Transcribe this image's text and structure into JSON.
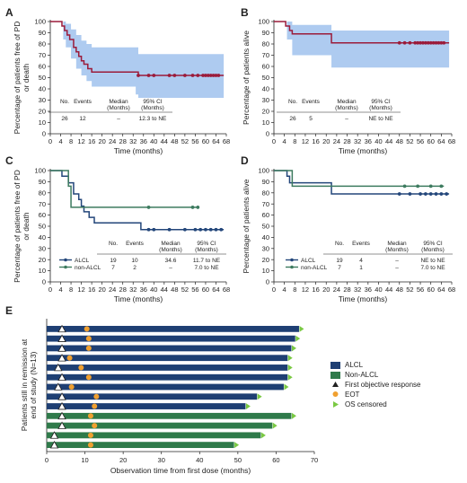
{
  "figure": {
    "panel_labels": [
      "A",
      "B",
      "C",
      "D",
      "E"
    ]
  },
  "colors": {
    "red": "#9b1b3a",
    "band": "#aecbf0",
    "navy": "#23467a",
    "green": "#3d7b5f",
    "alcl_bar": "#1e3f73",
    "nonalcl_bar": "#2f7a4a",
    "orange": "#f0a030",
    "ltgreen": "#7ac943",
    "tri": "#222222"
  },
  "chart_data": [
    {
      "id": "A",
      "type": "line",
      "ylabel": "Percentage of patients free of PD or death",
      "xlabel": "Time (months)",
      "xlim": [
        0,
        68
      ],
      "ylim": [
        0,
        100
      ],
      "xticks": [
        0,
        4,
        8,
        12,
        16,
        20,
        24,
        28,
        32,
        36,
        40,
        44,
        48,
        52,
        56,
        60,
        64,
        68
      ],
      "yticks": [
        0,
        10,
        20,
        30,
        40,
        50,
        60,
        70,
        80,
        90,
        100
      ],
      "table": {
        "header": [
          "No.",
          "Events",
          "Median (Months)",
          "95% CI (Months)"
        ],
        "rows": [
          [
            "",
            "26",
            "12",
            "–",
            "12.3 to NE"
          ]
        ]
      },
      "series": [
        {
          "color_key": "red",
          "steps": [
            [
              0,
              100
            ],
            [
              4,
              100
            ],
            [
              4.5,
              96
            ],
            [
              5.5,
              92
            ],
            [
              6.5,
              88
            ],
            [
              7.5,
              84
            ],
            [
              9,
              77
            ],
            [
              10,
              73
            ],
            [
              11,
              69
            ],
            [
              12,
              65
            ],
            [
              13,
              62
            ],
            [
              14.5,
              58
            ],
            [
              16,
              55
            ],
            [
              33,
              55
            ],
            [
              34,
              52
            ],
            [
              67,
              52
            ]
          ],
          "censored": [
            34,
            38,
            40,
            46,
            48,
            52,
            55,
            57,
            59,
            60,
            61,
            62,
            63,
            64,
            65
          ],
          "ci_upper": [
            [
              0,
              100
            ],
            [
              4,
              100
            ],
            [
              5,
              100
            ],
            [
              6,
              98
            ],
            [
              8,
              93
            ],
            [
              10,
              88
            ],
            [
              12,
              83
            ],
            [
              14,
              80
            ],
            [
              16,
              77
            ],
            [
              34,
              71
            ],
            [
              67,
              71
            ]
          ],
          "ci_lower": [
            [
              0,
              100
            ],
            [
              4,
              100
            ],
            [
              5,
              84
            ],
            [
              6,
              77
            ],
            [
              8,
              67
            ],
            [
              10,
              58
            ],
            [
              12,
              52
            ],
            [
              14,
              47
            ],
            [
              16,
              42
            ],
            [
              33,
              35
            ],
            [
              34,
              32
            ],
            [
              67,
              32
            ]
          ]
        }
      ]
    },
    {
      "id": "B",
      "type": "line",
      "ylabel": "Percentage of patients alive",
      "xlabel": "Time (months)",
      "xlim": [
        0,
        68
      ],
      "ylim": [
        0,
        100
      ],
      "xticks": [
        0,
        4,
        8,
        12,
        16,
        20,
        24,
        28,
        32,
        36,
        40,
        44,
        48,
        52,
        56,
        60,
        64,
        68
      ],
      "yticks": [
        0,
        10,
        20,
        30,
        40,
        50,
        60,
        70,
        80,
        90,
        100
      ],
      "table": {
        "header": [
          "No.",
          "Events",
          "Median (Months)",
          "95% CI (Months)"
        ],
        "rows": [
          [
            "",
            "26",
            "5",
            "–",
            "NE to NE"
          ]
        ]
      },
      "series": [
        {
          "color_key": "red",
          "steps": [
            [
              0,
              100
            ],
            [
              4,
              100
            ],
            [
              4.5,
              96
            ],
            [
              6,
              92
            ],
            [
              7,
              89
            ],
            [
              21,
              89
            ],
            [
              22,
              81
            ],
            [
              67,
              81
            ]
          ],
          "censored": [
            48,
            50,
            52,
            54,
            55,
            56,
            57,
            58,
            59,
            60,
            61,
            62,
            63,
            64,
            65
          ],
          "ci_upper": [
            [
              0,
              100
            ],
            [
              4,
              100
            ],
            [
              5,
              100
            ],
            [
              7,
              97
            ],
            [
              21,
              97
            ],
            [
              22,
              92
            ],
            [
              67,
              92
            ]
          ],
          "ci_lower": [
            [
              0,
              100
            ],
            [
              4,
              100
            ],
            [
              5,
              84
            ],
            [
              7,
              70
            ],
            [
              21,
              70
            ],
            [
              22,
              59
            ],
            [
              67,
              59
            ]
          ]
        }
      ]
    },
    {
      "id": "C",
      "type": "line",
      "ylabel": "Percentage of patients free of PD or death",
      "xlabel": "Time (months)",
      "xlim": [
        0,
        68
      ],
      "ylim": [
        0,
        100
      ],
      "xticks": [
        0,
        4,
        8,
        12,
        16,
        20,
        24,
        28,
        32,
        36,
        40,
        44,
        48,
        52,
        56,
        60,
        64,
        68
      ],
      "yticks": [
        0,
        10,
        20,
        30,
        40,
        50,
        60,
        70,
        80,
        90,
        100
      ],
      "table": {
        "header": [
          "No.",
          "Events",
          "Median (Months)",
          "95% CI (Months)"
        ],
        "rows": [
          [
            "ALCL",
            "19",
            "10",
            "34.6",
            "11.7 to NE"
          ],
          [
            "non-ALCL",
            "7",
            "2",
            "–",
            "7.0 to NE"
          ]
        ]
      },
      "series": [
        {
          "name": "ALCL",
          "color_key": "navy",
          "steps": [
            [
              0,
              100
            ],
            [
              4,
              100
            ],
            [
              4.5,
              95
            ],
            [
              7,
              89
            ],
            [
              9,
              79
            ],
            [
              11,
              74
            ],
            [
              12,
              68
            ],
            [
              13,
              63
            ],
            [
              15,
              58
            ],
            [
              17,
              53
            ],
            [
              34,
              53
            ],
            [
              35,
              47
            ],
            [
              67,
              47
            ]
          ],
          "censored": [
            38,
            40,
            46,
            52,
            56,
            58,
            60,
            62,
            64,
            66
          ]
        },
        {
          "name": "non-ALCL",
          "color_key": "green",
          "steps": [
            [
              0,
              100
            ],
            [
              6,
              100
            ],
            [
              7,
              86
            ],
            [
              8,
              67
            ],
            [
              57,
              67
            ]
          ],
          "censored": [
            38,
            55,
            57
          ]
        }
      ]
    },
    {
      "id": "D",
      "type": "line",
      "ylabel": "Percentage of patients alive",
      "xlabel": "Time (months)",
      "xlim": [
        0,
        68
      ],
      "ylim": [
        0,
        100
      ],
      "xticks": [
        0,
        4,
        8,
        12,
        16,
        20,
        24,
        28,
        32,
        36,
        40,
        44,
        48,
        52,
        56,
        60,
        64,
        68
      ],
      "yticks": [
        0,
        10,
        20,
        30,
        40,
        50,
        60,
        70,
        80,
        90,
        100
      ],
      "table": {
        "header": [
          "No.",
          "Events",
          "Median (Months)",
          "95% CI (Months)"
        ],
        "rows": [
          [
            "ALCL",
            "19",
            "4",
            "–",
            "NE to NE"
          ],
          [
            "non-ALCL",
            "7",
            "1",
            "–",
            "7.0 to NE"
          ]
        ]
      },
      "series": [
        {
          "name": "ALCL",
          "color_key": "navy",
          "steps": [
            [
              0,
              100
            ],
            [
              4,
              100
            ],
            [
              5,
              95
            ],
            [
              6,
              89
            ],
            [
              21,
              89
            ],
            [
              22,
              79
            ],
            [
              67,
              79
            ]
          ],
          "censored": [
            48,
            52,
            56,
            58,
            60,
            62,
            64,
            66
          ]
        },
        {
          "name": "non-ALCL",
          "color_key": "green",
          "steps": [
            [
              0,
              100
            ],
            [
              6,
              100
            ],
            [
              7,
              86
            ],
            [
              65,
              86
            ]
          ],
          "censored": [
            50,
            55,
            60,
            64
          ]
        }
      ]
    },
    {
      "id": "E",
      "type": "bar",
      "orientation": "horizontal",
      "ylabel": "Patients still in remission at end of study (N=13)",
      "xlabel": "Observation time from first dose (months)",
      "xlim": [
        0,
        70
      ],
      "xticks": [
        0,
        10,
        20,
        30,
        40,
        50,
        60,
        70
      ],
      "legend": [
        "ALCL",
        "Non-ALCL",
        "First objective response",
        "EOT",
        "OS censored"
      ],
      "bars": [
        {
          "group": "ALCL",
          "end": 66,
          "response": 4,
          "eot": 10.5
        },
        {
          "group": "ALCL",
          "end": 65,
          "response": 4,
          "eot": 11
        },
        {
          "group": "ALCL",
          "end": 64,
          "response": 4,
          "eot": 11
        },
        {
          "group": "ALCL",
          "end": 63,
          "response": 4,
          "eot": 6
        },
        {
          "group": "ALCL",
          "end": 63,
          "response": 3,
          "eot": 9
        },
        {
          "group": "ALCL",
          "end": 63,
          "response": 4,
          "eot": 11
        },
        {
          "group": "ALCL",
          "end": 62,
          "response": 3,
          "eot": 6.5
        },
        {
          "group": "ALCL",
          "end": 55,
          "response": 4,
          "eot": 13
        },
        {
          "group": "ALCL",
          "end": 52,
          "response": 4,
          "eot": 12.5
        },
        {
          "group": "Non-ALCL",
          "end": 64,
          "response": 4,
          "eot": 11.5
        },
        {
          "group": "Non-ALCL",
          "end": 59,
          "response": 4,
          "eot": 12.5
        },
        {
          "group": "Non-ALCL",
          "end": 56,
          "response": 2,
          "eot": 11.5
        },
        {
          "group": "Non-ALCL",
          "end": 49,
          "response": 2,
          "eot": 11.5
        }
      ]
    }
  ]
}
